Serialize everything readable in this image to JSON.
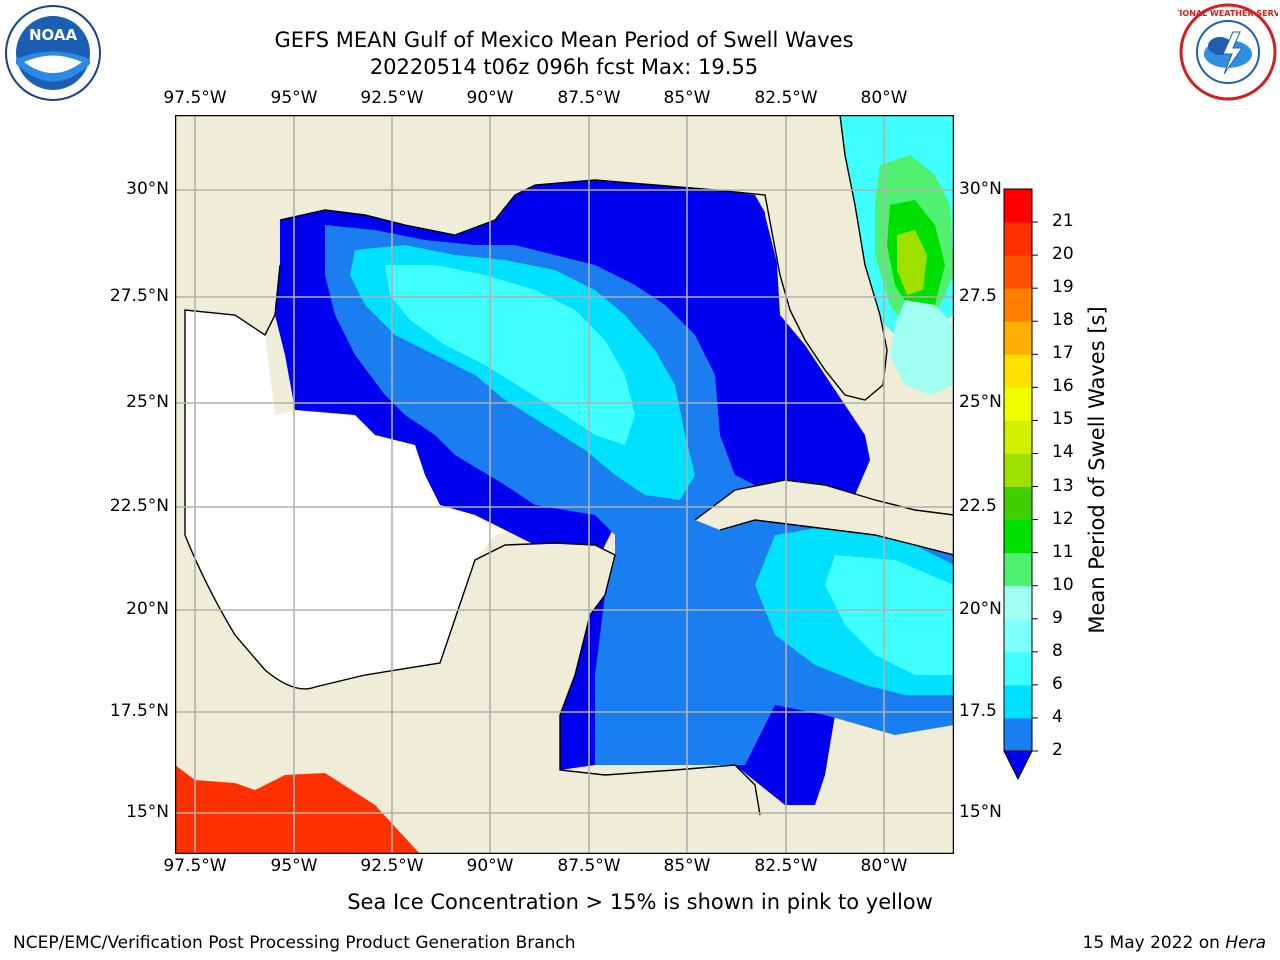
{
  "title": {
    "line1": "GEFS MEAN Gulf of Mexico Mean Period of Swell Waves",
    "line2": "20220514 t06z 096h fcst   Max: 19.55"
  },
  "axes": {
    "top_ticks": [
      "97.5°W",
      "95°W",
      "92.5°W",
      "90°W",
      "87.5°W",
      "85°W",
      "82.5°W",
      "80°W"
    ],
    "bottom_ticks": [
      "97.5°W",
      "95°W",
      "92.5°W",
      "90°W",
      "87.5°W",
      "85°W",
      "82.5°W",
      "80°W"
    ],
    "left_ticks": [
      "30°N",
      "27.5°N",
      "25°N",
      "22.5°N",
      "20°N",
      "17.5°N",
      "15°N"
    ],
    "right_ticks": [
      "30°N",
      "27.5",
      "25°N",
      "22.5",
      "20°N",
      "17.5",
      "15°N"
    ]
  },
  "colorbar": {
    "title": "Mean Period of Swell Waves [s]",
    "ticks": [
      "2",
      "4",
      "6",
      "8",
      "9",
      "10",
      "11",
      "12",
      "13",
      "14",
      "15",
      "16",
      "17",
      "18",
      "19",
      "20",
      "21"
    ],
    "colors": [
      "#1a7df0",
      "#00e0ff",
      "#40ffff",
      "#80ffff",
      "#a0fff0",
      "#50f070",
      "#00e000",
      "#40d000",
      "#a0e000",
      "#d0f000",
      "#f0ff00",
      "#ffe000",
      "#ffb000",
      "#ff8000",
      "#ff5000",
      "#ff3000",
      "#ff0000"
    ],
    "under_color": "#0000f0"
  },
  "map": {
    "land_color": "#efedd8",
    "grid_color": "#b0b0b0"
  },
  "logos": {
    "noaa_text": "NOAA",
    "nws_text": "NATIONAL WEATHER SERVICE"
  },
  "note": "Sea Ice Concentration > 15% is shown in pink to yellow",
  "footer": {
    "left": "NCEP/EMC/Verification Post Processing Product Generation Branch",
    "right_date": "15 May 2022 on",
    "right_host": "Hera"
  }
}
